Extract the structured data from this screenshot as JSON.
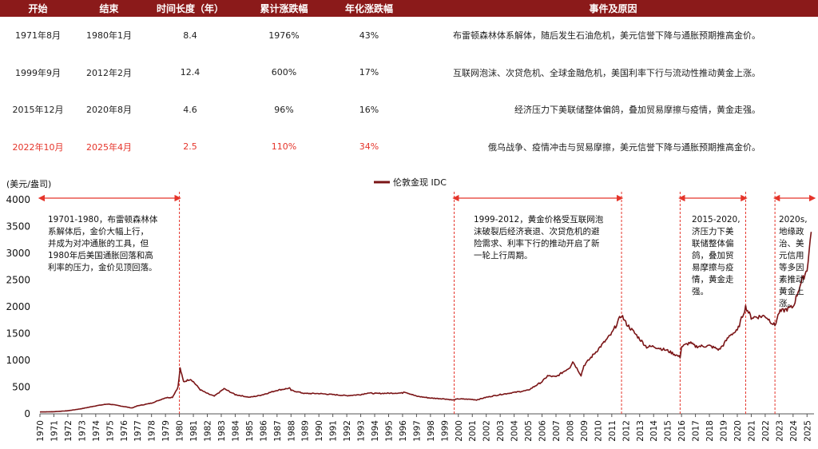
{
  "table": {
    "headers": [
      "开始",
      "结束",
      "时间长度（年）",
      "累计涨跌幅",
      "年化涨跌幅",
      "事件及原因"
    ],
    "rows": [
      {
        "start": "1971年8月",
        "end": "1980年1月",
        "duration": "8.4",
        "cumulative": "1976%",
        "annualized": "43%",
        "event": "布雷顿森林体系解体，随后发生石油危机，美元信誉下降与通胀预期推高金价。",
        "highlight": false
      },
      {
        "start": "1999年9月",
        "end": "2012年2月",
        "duration": "12.4",
        "cumulative": "600%",
        "annualized": "17%",
        "event": "互联网泡沫、次贷危机、全球金融危机，美国利率下行与流动性推动黄金上涨。",
        "highlight": false
      },
      {
        "start": "2015年12月",
        "end": "2020年8月",
        "duration": "4.6",
        "cumulative": "96%",
        "annualized": "16%",
        "event": "经济压力下美联储整体偏鸽，叠加贸易摩擦与疫情，黄金走强。",
        "highlight": false
      },
      {
        "start": "2022年10月",
        "end": "2025年4月",
        "duration": "2.5",
        "cumulative": "110%",
        "annualized": "34%",
        "event": "俄乌战争、疫情冲击与贸易摩擦，美元信誉下降与通胀预期推高金价。",
        "highlight": true
      }
    ]
  },
  "chart_data": {
    "type": "line",
    "ylabel": "(美元/盎司)",
    "ylim": [
      0,
      4000
    ],
    "yticks": [
      0,
      500,
      1000,
      1500,
      2000,
      2500,
      3000,
      3500,
      4000
    ],
    "xlim": [
      1970,
      2025.5
    ],
    "xticks": [
      "1970",
      "1971",
      "1972",
      "1973",
      "1974",
      "1975",
      "1976",
      "1977",
      "1978",
      "1979",
      "1980",
      "1981",
      "1982",
      "1983",
      "1984",
      "1985",
      "1986",
      "1987",
      "1988",
      "1989",
      "1990",
      "1991",
      "1992",
      "1993",
      "1994",
      "1995",
      "1996",
      "1997",
      "1998",
      "1999",
      "2000",
      "2001",
      "2002",
      "2003",
      "2004",
      "2005",
      "2006",
      "2007",
      "2008",
      "2009",
      "2010",
      "2011",
      "2012",
      "2013",
      "2014",
      "2015",
      "2016",
      "2017",
      "2018",
      "2019",
      "2020",
      "2021",
      "2022",
      "2023",
      "2024",
      "2025"
    ],
    "legend_position": "top-center",
    "colors": {
      "line": "#7a1416",
      "arrow": "#e5342a",
      "header": "#8b1a1a"
    },
    "series": [
      {
        "name": "伦敦金现 IDC",
        "x": [
          1970,
          1971,
          1972,
          1973,
          1974,
          1974.9,
          1975.5,
          1976.6,
          1977,
          1978,
          1979,
          1979.5,
          1979.9,
          1980.05,
          1980.3,
          1980.5,
          1980.8,
          1981,
          1981.5,
          1982,
          1982.5,
          1983,
          1983.2,
          1984,
          1985,
          1985.5,
          1986,
          1987,
          1987.9,
          1988,
          1989,
          1990,
          1991,
          1992,
          1993,
          1993.5,
          1994,
          1995,
          1996,
          1996.1,
          1997,
          1998,
          1999,
          1999.6,
          2000,
          2001,
          2001.3,
          2002,
          2003,
          2004,
          2005,
          2006,
          2006.4,
          2007,
          2008,
          2008.2,
          2008.8,
          2009,
          2010,
          2011,
          2011.7,
          2012,
          2013,
          2013.5,
          2014,
          2015,
          2015.9,
          2016,
          2016.6,
          2017,
          2018,
          2018.7,
          2019,
          2019.5,
          2020,
          2020.6,
          2021,
          2022,
          2022.7,
          2023,
          2024,
          2024.5,
          2025,
          2025.3
        ],
        "values": [
          35,
          40,
          58,
          97,
          150,
          185,
          160,
          110,
          150,
          200,
          300,
          310,
          500,
          850,
          600,
          620,
          650,
          600,
          450,
          380,
          330,
          430,
          470,
          360,
          310,
          330,
          360,
          440,
          480,
          440,
          380,
          380,
          360,
          340,
          360,
          390,
          380,
          385,
          390,
          415,
          330,
          295,
          280,
          258,
          280,
          270,
          260,
          310,
          360,
          400,
          440,
          600,
          710,
          690,
          870,
          980,
          720,
          900,
          1200,
          1500,
          1850,
          1700,
          1400,
          1250,
          1260,
          1180,
          1060,
          1250,
          1330,
          1260,
          1270,
          1200,
          1290,
          1480,
          1550,
          2000,
          1800,
          1830,
          1650,
          1900,
          2000,
          2400,
          2700,
          3400
        ]
      }
    ],
    "annotations": [
      {
        "text": [
          "19701-1980，布雷顿森林体",
          "系解体后，金价大幅上行，",
          "并成为对冲通胀的工具，但",
          "1980年后美国通胀回落和高",
          "利率的压力，金价见顶回落。"
        ],
        "x_from": 1970,
        "x_to": 1980
      },
      {
        "text": [
          "1999-2012，黄金价格受互联网泡",
          "沫破裂后经济衰退、次贷危机的避",
          "险需求、利率下行的推动开启了新",
          "一轮上行周期。"
        ],
        "x_from": 1999.7,
        "x_to": 2011.7
      },
      {
        "text": [
          "2015-2020,",
          "济压力下美",
          "联储整体偏",
          "鸽，叠加贸",
          "易摩擦与疫",
          "情，黄金走",
          "强。"
        ],
        "x_from": 2015.9,
        "x_to": 2020.6
      },
      {
        "text": [
          "2020s,",
          "地缘政",
          "治、美",
          "元信用",
          "等多因",
          "素推动",
          "黄金上",
          "涨。"
        ],
        "x_from": 2022.7,
        "x_to": 2025.5
      }
    ],
    "reference_lines": [
      1980,
      1999.7,
      2011.7,
      2015.9,
      2020.6,
      2022.7
    ]
  }
}
